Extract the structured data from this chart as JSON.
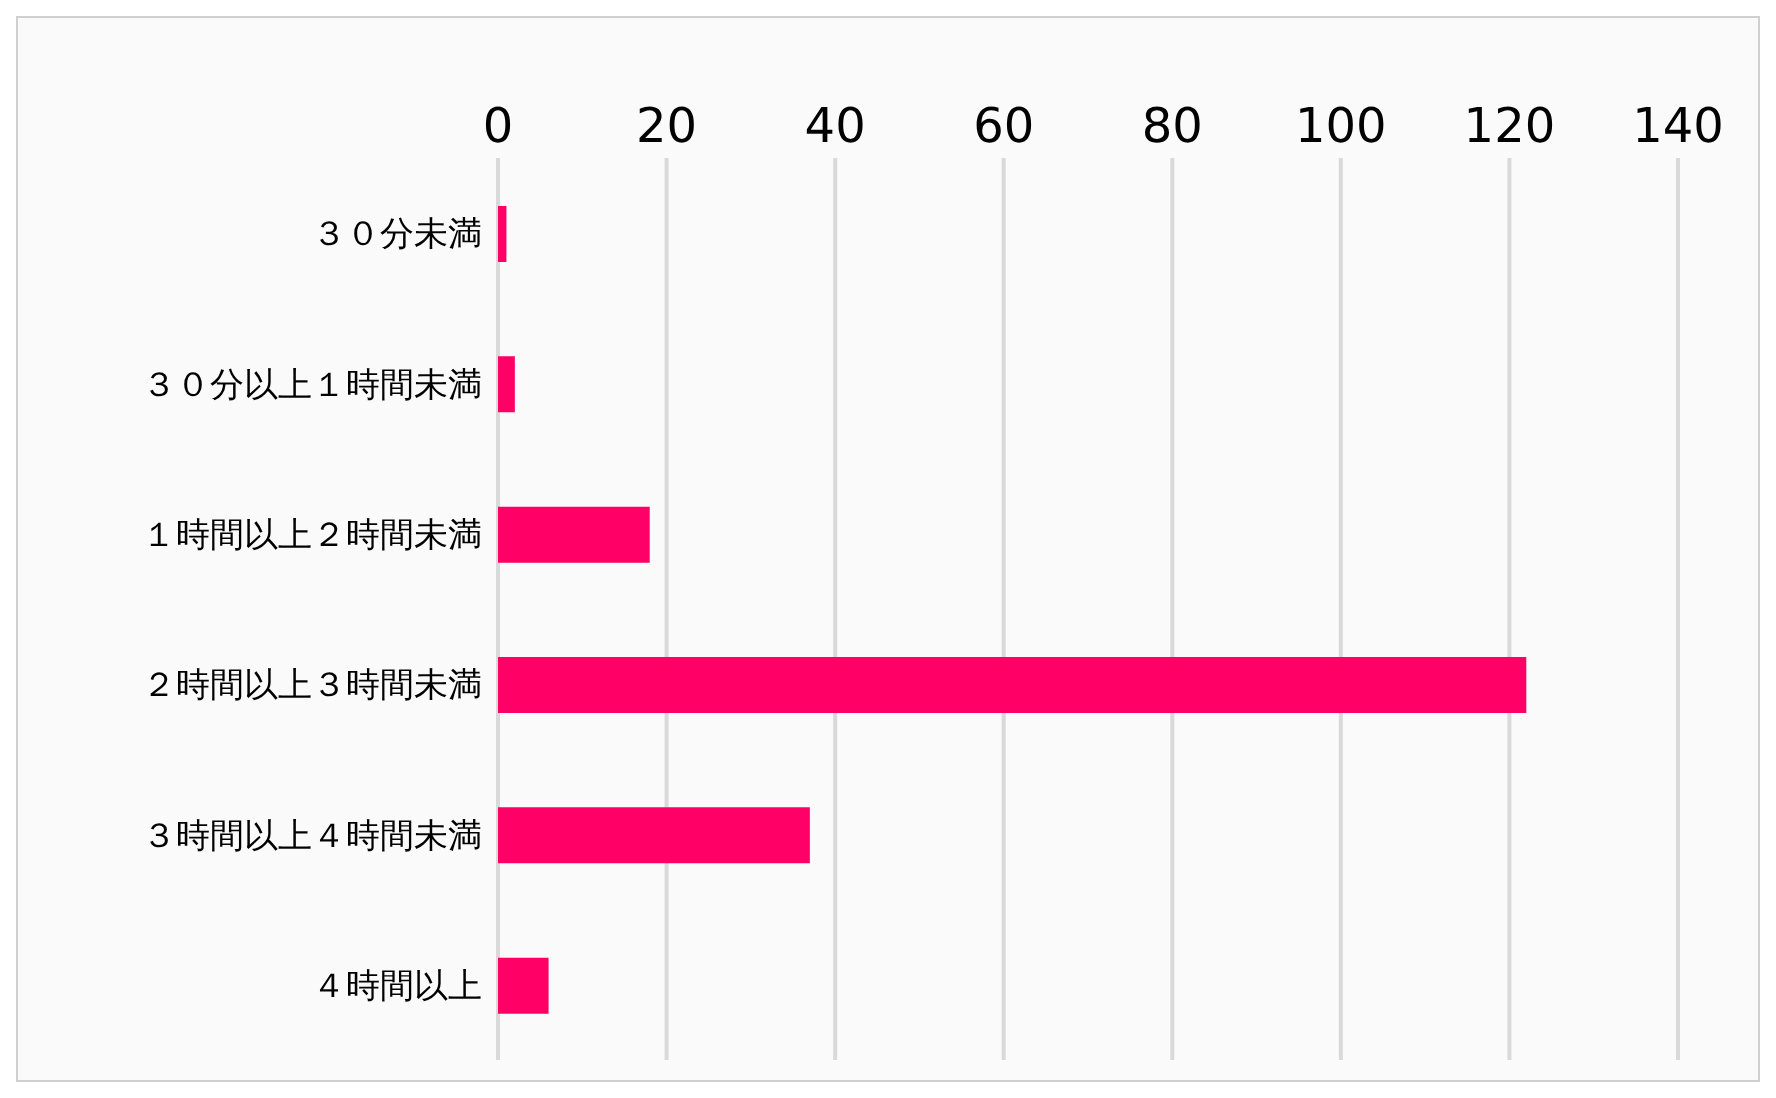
{
  "chart_data": {
    "type": "bar",
    "orientation": "horizontal",
    "categories": [
      "３０分未満",
      "３０分以上１時間未満",
      "１時間以上２時間未満",
      "２時間以上３時間未満",
      "３時間以上４時間未満",
      "４時間以上"
    ],
    "values": [
      1,
      2,
      18,
      122,
      37,
      6
    ],
    "color": "#ff0066",
    "xlim": [
      0,
      140
    ],
    "xticks": [
      0,
      20,
      40,
      60,
      80,
      100,
      120,
      140
    ],
    "grid": "x",
    "legend": false
  }
}
